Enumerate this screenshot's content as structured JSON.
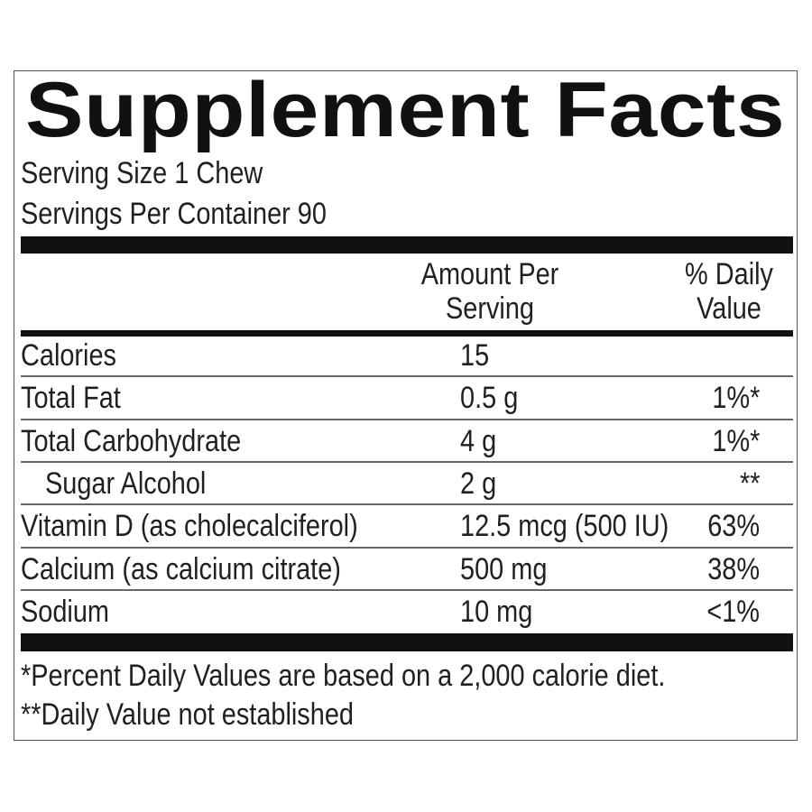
{
  "title": "Supplement Facts",
  "serving_size": "Serving Size 1 Chew",
  "servings_per_container": "Servings Per Container 90",
  "header": {
    "amount_line1": "Amount Per",
    "amount_line2": "Serving",
    "dv_line1": "% Daily",
    "dv_line2": "Value"
  },
  "rows": [
    {
      "name": "Calories",
      "amount": "15",
      "dv": ""
    },
    {
      "name": "Total Fat",
      "amount": "0.5 g",
      "dv": "1%*"
    },
    {
      "name": "Total Carbohydrate",
      "amount": "4 g",
      "dv": "1%*"
    },
    {
      "name": "Sugar Alcohol",
      "amount": "2 g",
      "dv": "**",
      "indent": true
    },
    {
      "name": "Vitamin D (as cholecalciferol)",
      "amount": "12.5 mcg (500 IU)",
      "dv": "63%"
    },
    {
      "name": "Calcium (as calcium citrate)",
      "amount": "500 mg",
      "dv": "38%"
    },
    {
      "name": "Sodium",
      "amount": "10 mg",
      "dv": "<1%"
    }
  ],
  "footnotes": [
    "*Percent Daily Values are based on a 2,000 calorie diet.",
    "**Daily Value not established"
  ]
}
